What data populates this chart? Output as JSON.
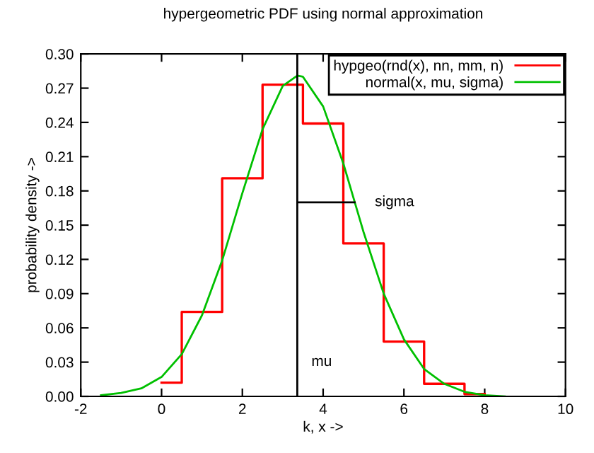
{
  "chart_data": {
    "type": "line",
    "title": "hypergeometric PDF using normal approximation",
    "xlabel": "k, x ->",
    "ylabel": "probability density ->",
    "xlim": [
      -2,
      10
    ],
    "xticks": [
      -2,
      0,
      2,
      4,
      6,
      8,
      10
    ],
    "ylim": [
      0,
      0.3
    ],
    "yticks": [
      {
        "value": 0,
        "label": "0.00"
      },
      {
        "value": 0.03,
        "label": "0.03"
      },
      {
        "value": 0.06,
        "label": "0.06"
      },
      {
        "value": 0.09,
        "label": "0.09"
      },
      {
        "value": 0.12,
        "label": "0.12"
      },
      {
        "value": 0.15,
        "label": "0.15"
      },
      {
        "value": 0.18,
        "label": "0.18"
      },
      {
        "value": 0.21,
        "label": "0.21"
      },
      {
        "value": 0.24,
        "label": "0.24"
      },
      {
        "value": 0.27,
        "label": "0.27"
      },
      {
        "value": 0.3,
        "label": "0.30"
      }
    ],
    "grid": false,
    "legend": "top right",
    "series": [
      {
        "name": "hypgeo(rnd(x), nn, mm, n)",
        "type": "step",
        "color": "#ff0000",
        "x": [
          0,
          1,
          2,
          3,
          4,
          5,
          6,
          7,
          8
        ],
        "values": [
          0.012,
          0.074,
          0.191,
          0.273,
          0.239,
          0.134,
          0.048,
          0.011,
          0.002
        ]
      },
      {
        "name": "normal(x, mu, sigma)",
        "color": "#00c000",
        "x": [
          -1.5,
          -1,
          -0.5,
          0,
          0.5,
          1,
          1.5,
          2,
          2.5,
          3,
          3.36,
          3.5,
          4,
          4.5,
          5,
          5.5,
          6,
          6.5,
          7,
          7.5,
          8,
          8.5
        ],
        "values": [
          0.001,
          0.003,
          0.007,
          0.017,
          0.037,
          0.071,
          0.119,
          0.178,
          0.234,
          0.272,
          0.281,
          0.28,
          0.254,
          0.204,
          0.144,
          0.09,
          0.05,
          0.024,
          0.011,
          0.004,
          0.001,
          0.0
        ]
      },
      {
        "name": "sigma",
        "color": "#000000",
        "x": [
          3.36,
          4.78
        ],
        "values": [
          0.17,
          0.17
        ]
      }
    ],
    "ref_lines": [
      {
        "axis": "x",
        "value": 3.36,
        "label": "mu",
        "color": "#000000"
      }
    ]
  }
}
